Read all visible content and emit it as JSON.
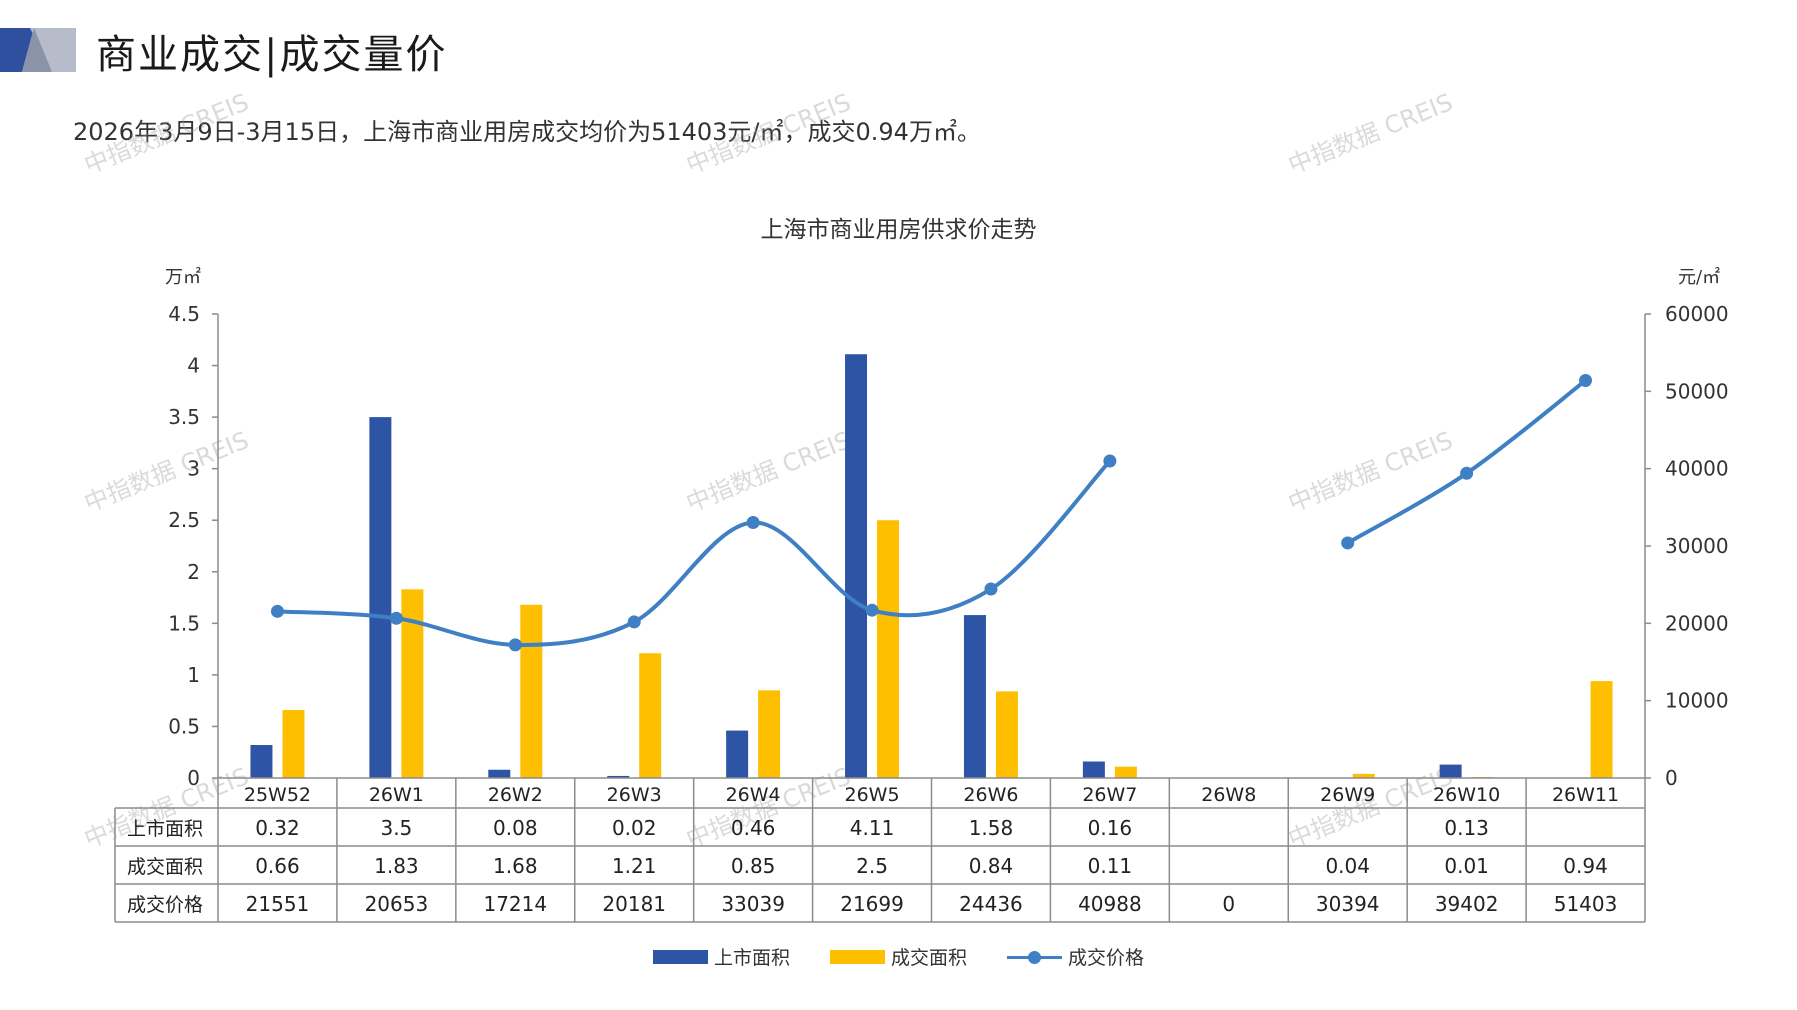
{
  "page": {
    "title": "商业成交|成交量价",
    "subtitle": "2026年3月9日-3月15日，上海市商业用房成交均价为51403元/㎡，成交0.94万㎡。",
    "watermark": "中指数据 CREIS"
  },
  "colors": {
    "supply": "#2e55a5",
    "sales": "#fdbf00",
    "price": "#3f7fc4",
    "grid_border": "#8c8c8c",
    "logo_dark": "#2f4f9f",
    "logo_light": "#b6bcc9"
  },
  "chart_data": {
    "type": "bar",
    "title": "上海市商业用房供求价走势",
    "left_axis_unit": "万㎡",
    "right_axis_unit": "元/㎡",
    "left_ticks": [
      "0",
      "0.5",
      "1",
      "1.5",
      "2",
      "2.5",
      "3",
      "3.5",
      "4",
      "4.5"
    ],
    "right_ticks": [
      "0",
      "10000",
      "20000",
      "30000",
      "40000",
      "50000",
      "60000"
    ],
    "ylim": [
      0,
      4.5
    ],
    "y2lim": [
      0,
      60000
    ],
    "categories": [
      "25W52",
      "26W1",
      "26W2",
      "26W3",
      "26W4",
      "26W5",
      "26W6",
      "26W7",
      "26W8",
      "26W9",
      "26W10",
      "26W11"
    ],
    "series": [
      {
        "name": "上市面积",
        "kind": "bar",
        "axis": "left",
        "values": [
          0.32,
          3.5,
          0.08,
          0.02,
          0.46,
          4.11,
          1.58,
          0.16,
          null,
          null,
          0.13,
          null
        ],
        "labels": [
          "0.32",
          "3.5",
          "0.08",
          "0.02",
          "0.46",
          "4.11",
          "1.58",
          "0.16",
          "",
          "",
          "0.13",
          ""
        ]
      },
      {
        "name": "成交面积",
        "kind": "bar",
        "axis": "left",
        "values": [
          0.66,
          1.83,
          1.68,
          1.21,
          0.85,
          2.5,
          0.84,
          0.11,
          null,
          0.04,
          0.01,
          0.94
        ],
        "labels": [
          "0.66",
          "1.83",
          "1.68",
          "1.21",
          "0.85",
          "2.5",
          "0.84",
          "0.11",
          "",
          "0.04",
          "0.01",
          "0.94"
        ]
      },
      {
        "name": "成交价格",
        "kind": "line",
        "axis": "right",
        "values": [
          21551,
          20653,
          17214,
          20181,
          33039,
          21699,
          24436,
          40988,
          0,
          30394,
          39402,
          51403
        ],
        "labels": [
          "21551",
          "20653",
          "17214",
          "20181",
          "33039",
          "21699",
          "24436",
          "40988",
          "0",
          "30394",
          "39402",
          "51403"
        ]
      }
    ]
  }
}
